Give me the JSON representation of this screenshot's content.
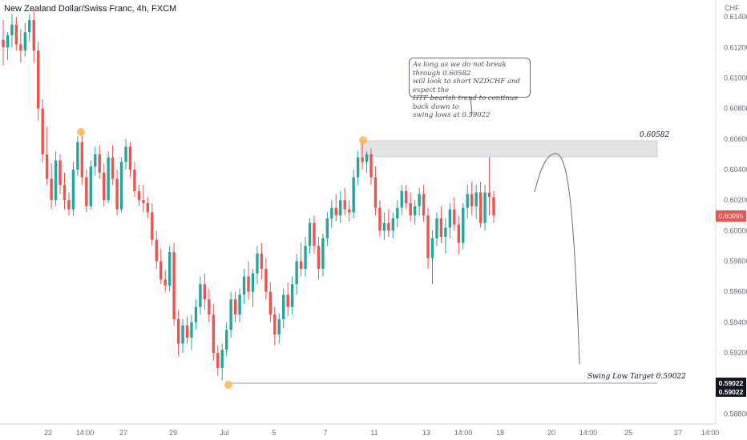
{
  "header": {
    "title": "New Zealand Dollar/Swiss Franc, 4h, FXCM"
  },
  "y_axis": {
    "currency": "CHF",
    "ticks": [
      "0.61400",
      "0.61200",
      "0.61000",
      "0.60800",
      "0.60600",
      "0.60400",
      "0.60200",
      "0.60000",
      "0.59800",
      "0.59600",
      "0.59400",
      "0.59200",
      "0.58800"
    ],
    "tick_values": [
      0.614,
      0.612,
      0.61,
      0.608,
      0.606,
      0.604,
      0.602,
      0.6,
      0.598,
      0.596,
      0.594,
      0.592,
      0.588
    ],
    "current_price": "0.60095",
    "target_label_1": "0.59022",
    "target_label_2": "0.59022"
  },
  "x_axis": {
    "labels": [
      "22",
      "14:00",
      "27",
      "29",
      "Jul",
      "5",
      "7",
      "11",
      "13",
      "14:00",
      "18",
      "20",
      "14:00",
      "25",
      "27",
      "14:00"
    ]
  },
  "annotations": {
    "note_lines": [
      "As long as we do not break through 0.60582",
      "will look to short NZDCHF and expect the",
      "HTF bearish trend to continue back down to",
      "swing lows at 0.59022"
    ],
    "resistance_label": "0.60582",
    "target_label": "Swing Low Target 0.59022"
  },
  "colors": {
    "up": "#26a69a",
    "down": "#ef5350",
    "zone": "#e0e0e0",
    "marker": "#ffb74d"
  },
  "chart_data": {
    "type": "candlestick",
    "title": "New Zealand Dollar/Swiss Franc, 4h, FXCM",
    "y_unit": "CHF",
    "ylim": [
      0.5875,
      0.6145
    ],
    "resistance_level": 0.60582,
    "target_level": 0.59022,
    "last_price": 0.60095,
    "ohlc": [
      [
        0.6125,
        0.6138,
        0.6108,
        0.612
      ],
      [
        0.612,
        0.613,
        0.6112,
        0.6128
      ],
      [
        0.6128,
        0.6142,
        0.612,
        0.6135
      ],
      [
        0.6135,
        0.614,
        0.6118,
        0.6122
      ],
      [
        0.6122,
        0.6132,
        0.611,
        0.6118
      ],
      [
        0.6118,
        0.6136,
        0.6114,
        0.613
      ],
      [
        0.613,
        0.6142,
        0.6124,
        0.6138
      ],
      [
        0.6138,
        0.6145,
        0.611,
        0.6118
      ],
      [
        0.6118,
        0.6124,
        0.6072,
        0.608
      ],
      [
        0.608,
        0.6086,
        0.6045,
        0.605
      ],
      [
        0.605,
        0.6068,
        0.603,
        0.6034
      ],
      [
        0.6034,
        0.6044,
        0.6014,
        0.602
      ],
      [
        0.602,
        0.6052,
        0.6016,
        0.6046
      ],
      [
        0.6046,
        0.605,
        0.6024,
        0.603
      ],
      [
        0.603,
        0.6038,
        0.6014,
        0.602
      ],
      [
        0.602,
        0.6025,
        0.601,
        0.6014
      ],
      [
        0.6014,
        0.6045,
        0.601,
        0.604
      ],
      [
        0.604,
        0.6062,
        0.6036,
        0.6058
      ],
      [
        0.6058,
        0.6062,
        0.603,
        0.6035
      ],
      [
        0.6035,
        0.604,
        0.6012,
        0.6016
      ],
      [
        0.6016,
        0.6046,
        0.6014,
        0.6042
      ],
      [
        0.6042,
        0.6055,
        0.6036,
        0.605
      ],
      [
        0.605,
        0.6056,
        0.6034,
        0.6038
      ],
      [
        0.6038,
        0.6044,
        0.6016,
        0.602
      ],
      [
        0.602,
        0.6052,
        0.6018,
        0.6048
      ],
      [
        0.6048,
        0.6056,
        0.603,
        0.6034
      ],
      [
        0.6034,
        0.604,
        0.601,
        0.6014
      ],
      [
        0.6014,
        0.6048,
        0.6012,
        0.6045
      ],
      [
        0.6045,
        0.606,
        0.604,
        0.6055
      ],
      [
        0.6055,
        0.6058,
        0.6035,
        0.604
      ],
      [
        0.604,
        0.6045,
        0.6022,
        0.6026
      ],
      [
        0.6026,
        0.603,
        0.6016,
        0.602
      ],
      [
        0.602,
        0.603,
        0.6012,
        0.6018
      ],
      [
        0.6018,
        0.6022,
        0.6008,
        0.6012
      ],
      [
        0.6012,
        0.6018,
        0.599,
        0.5994
      ],
      [
        0.5994,
        0.6,
        0.5975,
        0.598
      ],
      [
        0.598,
        0.5988,
        0.5965,
        0.5968
      ],
      [
        0.5968,
        0.5974,
        0.596,
        0.5964
      ],
      [
        0.5964,
        0.599,
        0.596,
        0.5986
      ],
      [
        0.5986,
        0.5992,
        0.5938,
        0.5942
      ],
      [
        0.5942,
        0.5948,
        0.5918,
        0.5926
      ],
      [
        0.5926,
        0.5942,
        0.592,
        0.5938
      ],
      [
        0.5938,
        0.5944,
        0.5926,
        0.593
      ],
      [
        0.593,
        0.5945,
        0.5922,
        0.594
      ],
      [
        0.594,
        0.5955,
        0.5935,
        0.595
      ],
      [
        0.595,
        0.597,
        0.5945,
        0.5965
      ],
      [
        0.5965,
        0.5972,
        0.5948,
        0.5955
      ],
      [
        0.5955,
        0.5962,
        0.594,
        0.5945
      ],
      [
        0.5945,
        0.5952,
        0.5915,
        0.592
      ],
      [
        0.592,
        0.5925,
        0.5905,
        0.591
      ],
      [
        0.591,
        0.5926,
        0.5902,
        0.5922
      ],
      [
        0.5922,
        0.594,
        0.5918,
        0.5935
      ],
      [
        0.5935,
        0.596,
        0.593,
        0.5955
      ],
      [
        0.5955,
        0.596,
        0.594,
        0.5945
      ],
      [
        0.5945,
        0.5962,
        0.594,
        0.5958
      ],
      [
        0.5958,
        0.5975,
        0.5952,
        0.597
      ],
      [
        0.597,
        0.598,
        0.5955,
        0.596
      ],
      [
        0.596,
        0.5975,
        0.595,
        0.5972
      ],
      [
        0.5972,
        0.599,
        0.5965,
        0.5985
      ],
      [
        0.5985,
        0.5992,
        0.5968,
        0.5975
      ],
      [
        0.5975,
        0.5982,
        0.5955,
        0.596
      ],
      [
        0.596,
        0.5966,
        0.594,
        0.5945
      ],
      [
        0.5945,
        0.595,
        0.5925,
        0.5932
      ],
      [
        0.5932,
        0.5946,
        0.5926,
        0.5942
      ],
      [
        0.5942,
        0.5962,
        0.5936,
        0.5958
      ],
      [
        0.5958,
        0.5966,
        0.5944,
        0.595
      ],
      [
        0.595,
        0.597,
        0.5945,
        0.5965
      ],
      [
        0.5965,
        0.5985,
        0.5958,
        0.598
      ],
      [
        0.598,
        0.5992,
        0.597,
        0.5975
      ],
      [
        0.5975,
        0.5996,
        0.597,
        0.599
      ],
      [
        0.599,
        0.6008,
        0.5985,
        0.6005
      ],
      [
        0.6005,
        0.601,
        0.5985,
        0.599
      ],
      [
        0.599,
        0.5996,
        0.5968,
        0.5975
      ],
      [
        0.5975,
        0.5998,
        0.597,
        0.5995
      ],
      [
        0.5995,
        0.6012,
        0.599,
        0.6008
      ],
      [
        0.6008,
        0.602,
        0.6002,
        0.6015
      ],
      [
        0.6015,
        0.6024,
        0.6006,
        0.601
      ],
      [
        0.601,
        0.6026,
        0.6005,
        0.602
      ],
      [
        0.602,
        0.6028,
        0.601,
        0.6014
      ],
      [
        0.6014,
        0.602,
        0.6006,
        0.6012
      ],
      [
        0.6012,
        0.604,
        0.6008,
        0.6035
      ],
      [
        0.6035,
        0.6052,
        0.603,
        0.6048
      ],
      [
        0.6048,
        0.606,
        0.604,
        0.6045
      ],
      [
        0.6045,
        0.6052,
        0.6038,
        0.605
      ],
      [
        0.605,
        0.6054,
        0.603,
        0.6035
      ],
      [
        0.6035,
        0.6042,
        0.601,
        0.6015
      ],
      [
        0.6015,
        0.602,
        0.5996,
        0.6
      ],
      [
        0.6,
        0.6012,
        0.5994,
        0.6005
      ],
      [
        0.6005,
        0.6014,
        0.5996,
        0.6
      ],
      [
        0.6,
        0.6012,
        0.5995,
        0.6008
      ],
      [
        0.6008,
        0.602,
        0.6002,
        0.6015
      ],
      [
        0.6015,
        0.603,
        0.601,
        0.6026
      ],
      [
        0.6026,
        0.603,
        0.6014,
        0.6018
      ],
      [
        0.6018,
        0.6025,
        0.6006,
        0.601
      ],
      [
        0.601,
        0.602,
        0.6004,
        0.6016
      ],
      [
        0.6016,
        0.6028,
        0.601,
        0.6024
      ],
      [
        0.6024,
        0.603,
        0.6006,
        0.601
      ],
      [
        0.601,
        0.6015,
        0.5975,
        0.5982
      ],
      [
        0.5982,
        0.6,
        0.5965,
        0.5995
      ],
      [
        0.5995,
        0.6012,
        0.599,
        0.6008
      ],
      [
        0.6008,
        0.6016,
        0.5992,
        0.5996
      ],
      [
        0.5996,
        0.6008,
        0.5985,
        0.6002
      ],
      [
        0.6002,
        0.6018,
        0.5995,
        0.6014
      ],
      [
        0.6014,
        0.6022,
        0.6,
        0.6004
      ],
      [
        0.6004,
        0.601,
        0.5985,
        0.5992
      ],
      [
        0.5992,
        0.6018,
        0.5988,
        0.6015
      ],
      [
        0.6015,
        0.603,
        0.6008,
        0.6024
      ],
      [
        0.6024,
        0.6032,
        0.601,
        0.6016
      ],
      [
        0.6016,
        0.603,
        0.6008,
        0.6025
      ],
      [
        0.6025,
        0.6032,
        0.6002,
        0.6005
      ],
      [
        0.6005,
        0.603,
        0.6,
        0.6025
      ],
      [
        0.6025,
        0.6048,
        0.601,
        0.6022
      ],
      [
        0.6022,
        0.6026,
        0.6005,
        0.601
      ]
    ]
  }
}
